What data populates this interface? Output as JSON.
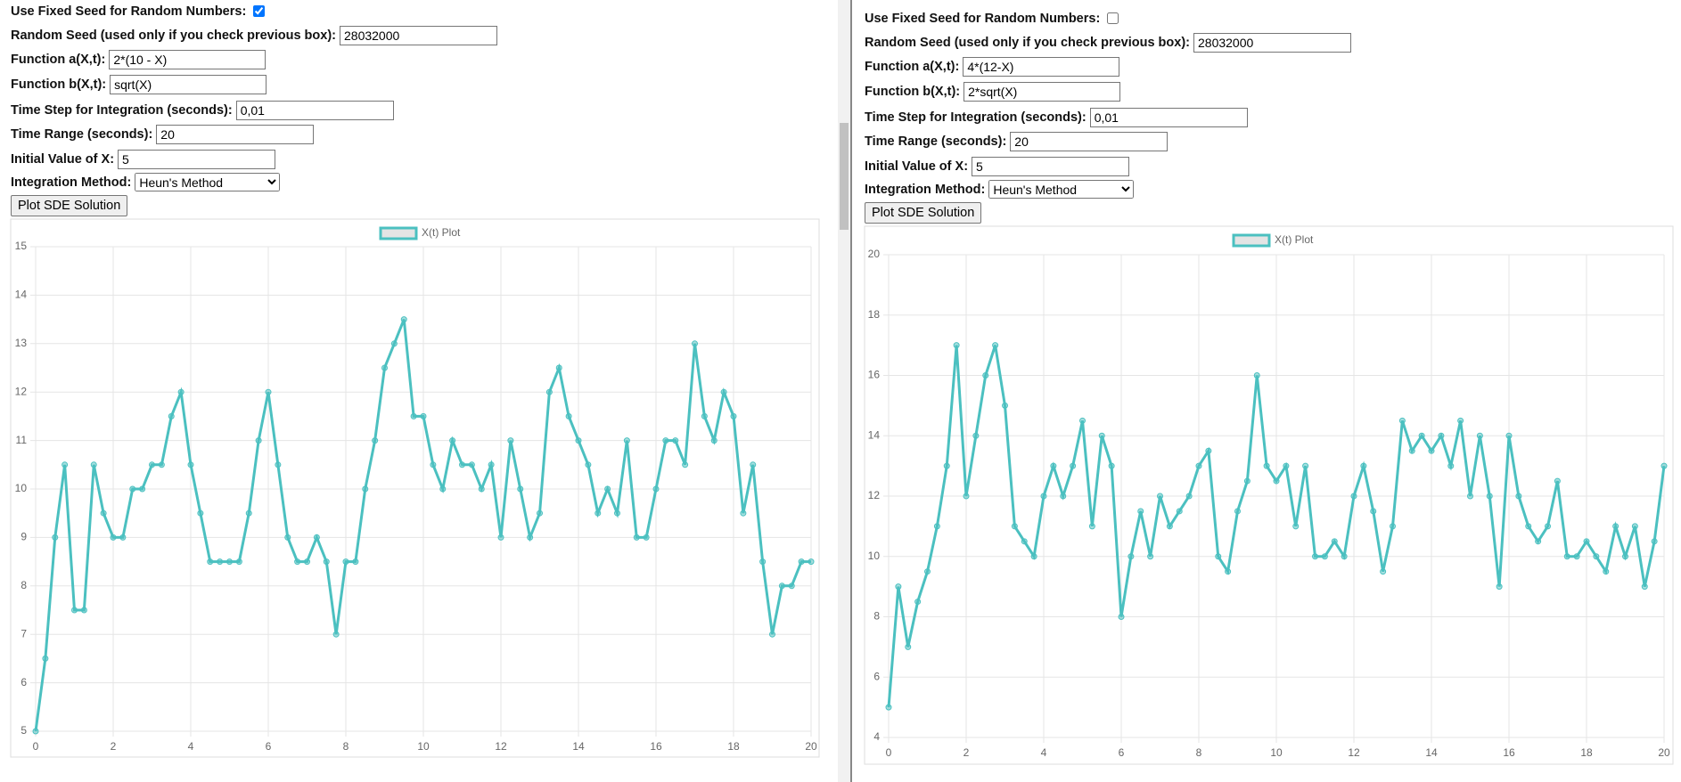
{
  "panels": [
    {
      "fixed_seed_label": "Use Fixed Seed for Random Numbers:",
      "fixed_seed_checked": true,
      "seed_label": "Random Seed (used only if you check previous box):",
      "seed_value": "28032000",
      "a_label": "Function a(X,t):",
      "a_value": "2*(10 - X)",
      "b_label": "Function b(X,t):",
      "b_value": "sqrt(X)",
      "dt_label": "Time Step for Integration (seconds):",
      "dt_value": "0,01",
      "range_label": "Time Range (seconds):",
      "range_value": "20",
      "x0_label": "Initial Value of X:",
      "x0_value": "5",
      "method_label": "Integration Method:",
      "method_value": "Heun's Method",
      "button": "Plot SDE Solution"
    },
    {
      "fixed_seed_label": "Use Fixed Seed for Random Numbers:",
      "fixed_seed_checked": false,
      "seed_label": "Random Seed (used only if you check previous box):",
      "seed_value": "28032000",
      "a_label": "Function a(X,t):",
      "a_value": "4*(12-X)",
      "b_label": "Function b(X,t):",
      "b_value": "2*sqrt(X)",
      "dt_label": "Time Step for Integration (seconds):",
      "dt_value": "0,01",
      "range_label": "Time Range (seconds):",
      "range_value": "20",
      "x0_label": "Initial Value of X:",
      "x0_value": "5",
      "method_label": "Integration Method:",
      "method_value": "Heun's Method",
      "button": "Plot SDE Solution"
    }
  ],
  "chart_data": [
    {
      "type": "line",
      "legend": "top",
      "grid": true,
      "x": [
        0,
        0.25,
        0.5,
        0.75,
        1,
        1.25,
        1.5,
        1.75,
        2,
        2.25,
        2.5,
        2.75,
        3,
        3.25,
        3.5,
        3.75,
        4,
        4.25,
        4.5,
        4.75,
        5,
        5.25,
        5.5,
        5.75,
        6,
        6.25,
        6.5,
        6.75,
        7,
        7.25,
        7.5,
        7.75,
        8,
        8.25,
        8.5,
        8.75,
        9,
        9.25,
        9.5,
        9.75,
        10,
        10.25,
        10.5,
        10.75,
        11,
        11.25,
        11.5,
        11.75,
        12,
        12.25,
        12.5,
        12.75,
        13,
        13.25,
        13.5,
        13.75,
        14,
        14.25,
        14.5,
        14.75,
        15,
        15.25,
        15.5,
        15.75,
        16,
        16.25,
        16.5,
        16.75,
        17,
        17.25,
        17.5,
        17.75,
        18,
        18.25,
        18.5,
        18.75,
        19,
        19.25,
        19.5,
        19.75,
        20
      ],
      "series": [
        {
          "name": "X(t) Plot",
          "color": "#4bc0c0",
          "values": [
            5,
            6.5,
            9,
            10.5,
            7.5,
            7.5,
            10.5,
            9.5,
            9,
            9,
            10,
            10,
            10.5,
            10.5,
            11.5,
            12,
            10.5,
            9.5,
            8.5,
            8.5,
            8.5,
            8.5,
            9.5,
            11,
            12,
            10.5,
            9,
            8.5,
            8.5,
            9,
            8.5,
            7,
            8.5,
            8.5,
            10,
            11,
            12.5,
            13,
            13.5,
            11.5,
            11.5,
            10.5,
            10,
            11,
            10.5,
            10.5,
            10,
            10.5,
            9,
            11,
            10,
            9,
            9.5,
            12,
            12.5,
            11.5,
            11,
            10.5,
            9.5,
            10,
            9.5,
            11,
            9,
            9,
            10,
            11,
            11,
            10.5,
            13,
            11.5,
            11,
            12,
            11.5,
            9.5,
            10.5,
            8.5,
            7,
            8,
            8,
            8.5,
            8.5
          ]
        }
      ],
      "xlim": [
        0,
        20
      ],
      "xticks": [
        0,
        2,
        4,
        6,
        8,
        10,
        12,
        14,
        16,
        18,
        20
      ],
      "ylim": [
        5,
        15
      ],
      "yticks": [
        5,
        6,
        7,
        8,
        9,
        10,
        11,
        12,
        13,
        14,
        15
      ]
    },
    {
      "type": "line",
      "legend": "top",
      "grid": true,
      "x": [
        0,
        0.25,
        0.5,
        0.75,
        1,
        1.25,
        1.5,
        1.75,
        2,
        2.25,
        2.5,
        2.75,
        3,
        3.25,
        3.5,
        3.75,
        4,
        4.25,
        4.5,
        4.75,
        5,
        5.25,
        5.5,
        5.75,
        6,
        6.25,
        6.5,
        6.75,
        7,
        7.25,
        7.5,
        7.75,
        8,
        8.25,
        8.5,
        8.75,
        9,
        9.25,
        9.5,
        9.75,
        10,
        10.25,
        10.5,
        10.75,
        11,
        11.25,
        11.5,
        11.75,
        12,
        12.25,
        12.5,
        12.75,
        13,
        13.25,
        13.5,
        13.75,
        14,
        14.25,
        14.5,
        14.75,
        15,
        15.25,
        15.5,
        15.75,
        16,
        16.25,
        16.5,
        16.75,
        17,
        17.25,
        17.5,
        17.75,
        18,
        18.25,
        18.5,
        18.75,
        19,
        19.25,
        19.5,
        19.75,
        20
      ],
      "series": [
        {
          "name": "X(t) Plot",
          "color": "#4bc0c0",
          "values": [
            5,
            9,
            7,
            8.5,
            9.5,
            11,
            13,
            17,
            12,
            14,
            16,
            17,
            15,
            11,
            10.5,
            10,
            12,
            13,
            12,
            13,
            14.5,
            11,
            14,
            13,
            8,
            10,
            11.5,
            10,
            12,
            11,
            11.5,
            12,
            13,
            13.5,
            10,
            9.5,
            11.5,
            12.5,
            16,
            13,
            12.5,
            13,
            11,
            13,
            10,
            10,
            10.5,
            10,
            12,
            13,
            11.5,
            9.5,
            11,
            14.5,
            13.5,
            14,
            13.5,
            14,
            13,
            14.5,
            12,
            14,
            12,
            9,
            14,
            12,
            11,
            10.5,
            11,
            12.5,
            10,
            10,
            10.5,
            10,
            9.5,
            11,
            10,
            11,
            9,
            10.5,
            13
          ]
        }
      ],
      "xlim": [
        0,
        20
      ],
      "xticks": [
        0,
        2,
        4,
        6,
        8,
        10,
        12,
        14,
        16,
        18,
        20
      ],
      "ylim": [
        4,
        20
      ],
      "yticks": [
        4,
        6,
        8,
        10,
        12,
        14,
        16,
        18,
        20
      ]
    }
  ]
}
